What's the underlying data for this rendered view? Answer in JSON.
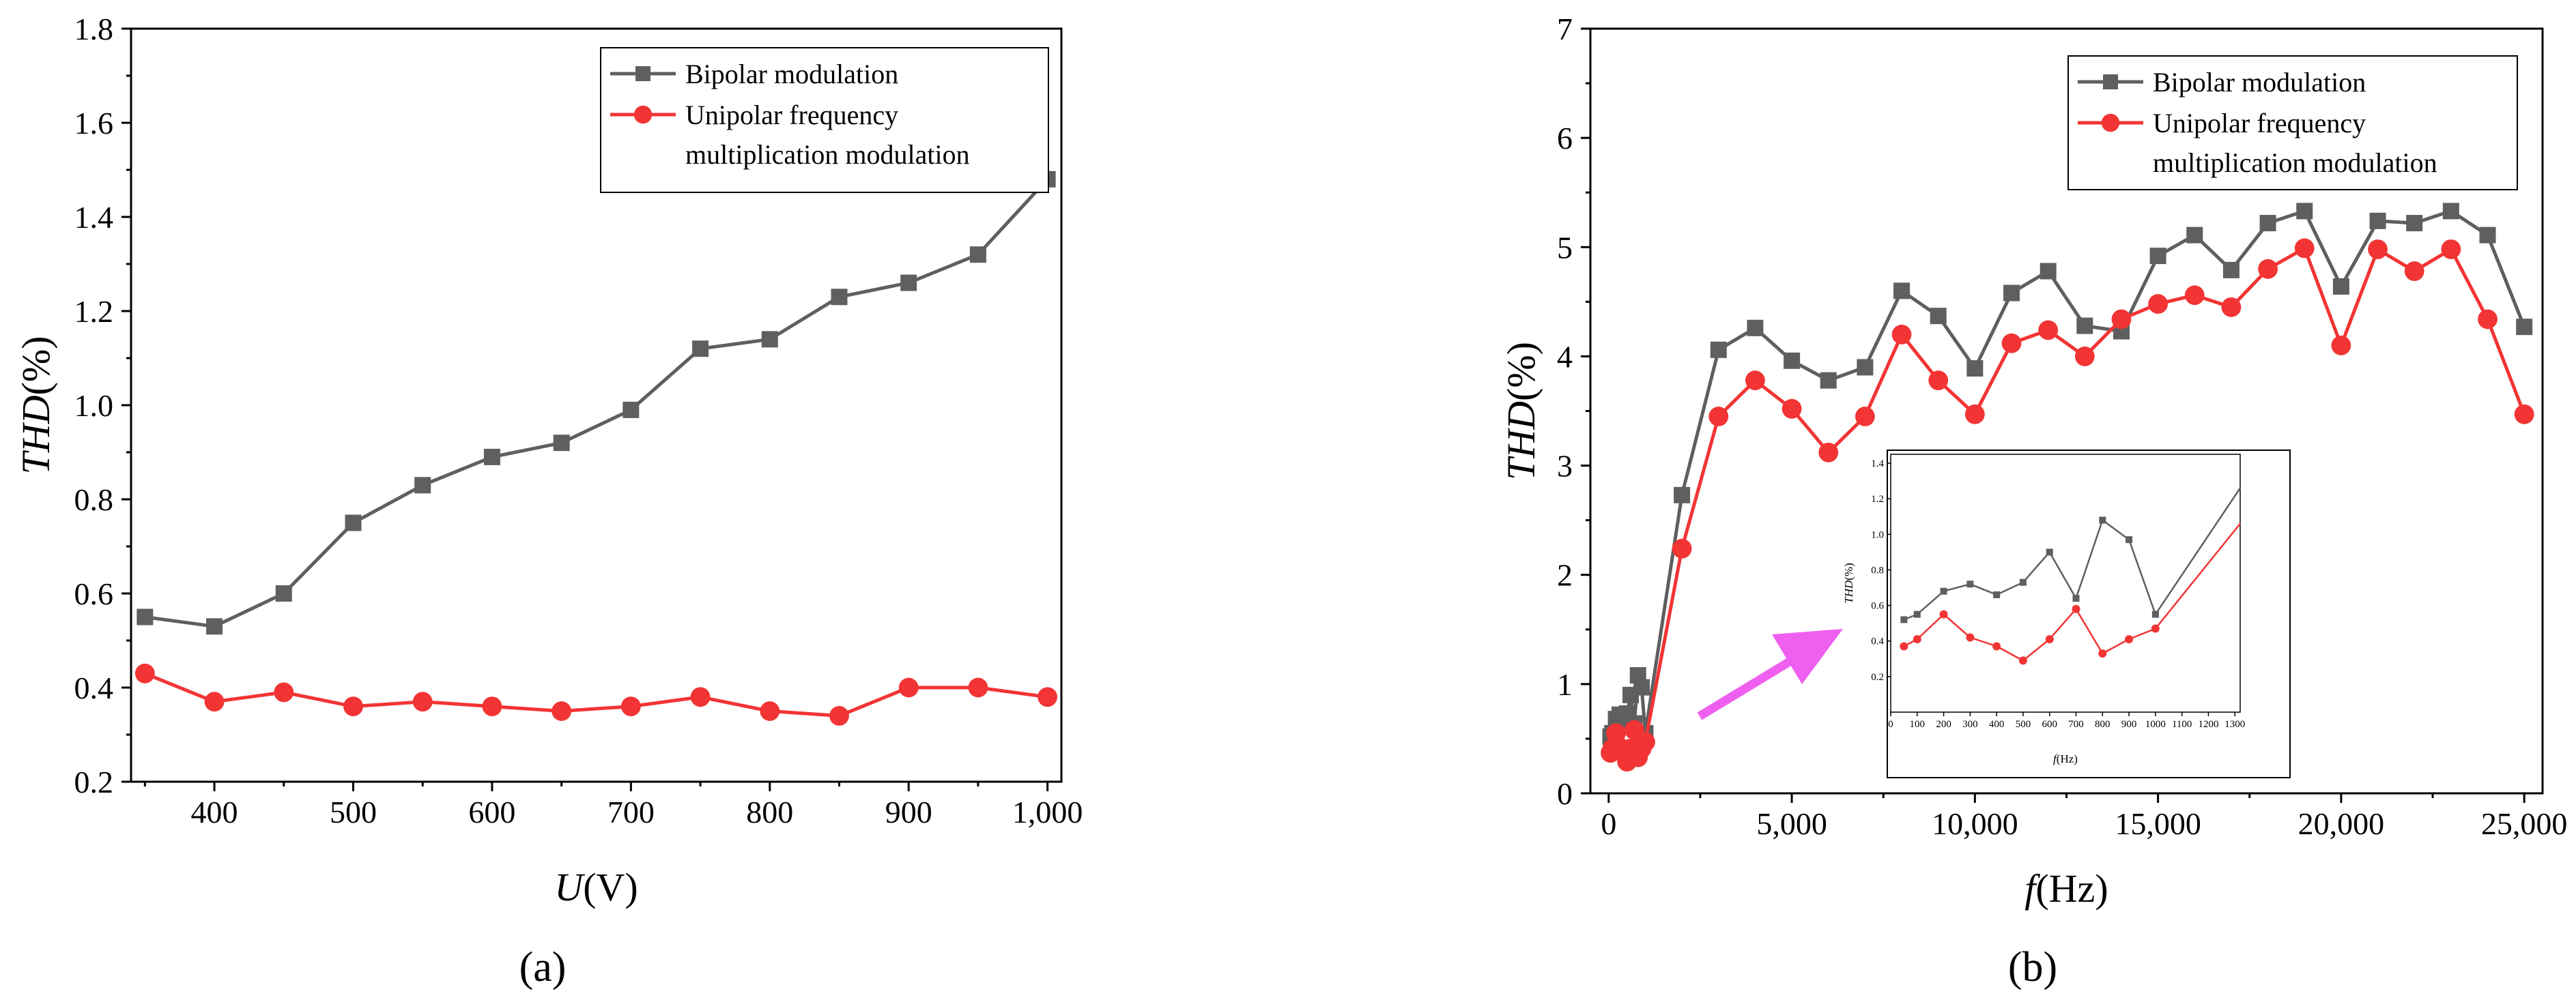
{
  "colors": {
    "bipolar": "#5f5f5f",
    "unipolar": "#f23434",
    "arrow": "#ef5ff0",
    "axis": "#000000"
  },
  "chart_data": [
    {
      "type": "line",
      "caption": "(a)",
      "xlabel_italic": "U",
      "xlabel_unit": "(V)",
      "ylabel_italic": "THD",
      "ylabel_unit": "(%)",
      "xlim": [
        340,
        1010
      ],
      "ylim": [
        0.2,
        1.8
      ],
      "xticks": [
        400,
        500,
        600,
        700,
        800,
        900,
        1000
      ],
      "xtick_labels": [
        "400",
        "500",
        "600",
        "700",
        "800",
        "900",
        "1,000"
      ],
      "yticks": [
        0.2,
        0.4,
        0.6,
        0.8,
        1.0,
        1.2,
        1.4,
        1.6,
        1.8
      ],
      "ytick_labels": [
        "0.2",
        "0.4",
        "0.6",
        "0.8",
        "1.0",
        "1.2",
        "1.4",
        "1.6",
        "1.8"
      ],
      "legend": {
        "position": "top-right",
        "entries": [
          "Bipolar modulation",
          "Unipolar frequency",
          "multiplication modulation"
        ]
      },
      "x": [
        350,
        400,
        450,
        500,
        550,
        600,
        650,
        700,
        750,
        800,
        850,
        900,
        950,
        1000
      ],
      "series": [
        {
          "name": "Bipolar modulation",
          "marker": "square",
          "values": [
            0.55,
            0.53,
            0.6,
            0.75,
            0.83,
            0.89,
            0.92,
            0.99,
            1.12,
            1.14,
            1.23,
            1.26,
            1.32,
            1.48
          ]
        },
        {
          "name": "Unipolar frequency multiplication modulation",
          "marker": "circle",
          "values": [
            0.43,
            0.37,
            0.39,
            0.36,
            0.37,
            0.36,
            0.35,
            0.36,
            0.38,
            0.35,
            0.34,
            0.4,
            0.4,
            0.38
          ]
        }
      ]
    },
    {
      "type": "line",
      "caption": "(b)",
      "xlabel_italic": "f",
      "xlabel_unit": "(Hz)",
      "ylabel_italic": "THD",
      "ylabel_unit": "(%)",
      "xlim": [
        -500,
        25500
      ],
      "ylim": [
        0,
        7
      ],
      "xticks": [
        0,
        5000,
        10000,
        15000,
        20000,
        25000
      ],
      "xtick_labels": [
        "0",
        "5,000",
        "10,000",
        "15,000",
        "20,000",
        "25,000"
      ],
      "yticks": [
        0,
        1,
        2,
        3,
        4,
        5,
        6,
        7
      ],
      "ytick_labels": [
        "0",
        "1",
        "2",
        "3",
        "4",
        "5",
        "6",
        "7"
      ],
      "legend": {
        "position": "top-right",
        "entries": [
          "Bipolar modulation",
          "Unipolar frequency",
          "multiplication modulation"
        ]
      },
      "x": [
        50,
        100,
        200,
        300,
        400,
        500,
        600,
        700,
        800,
        900,
        1000,
        2000,
        3000,
        4000,
        5000,
        6000,
        7000,
        8000,
        9000,
        10000,
        11000,
        12000,
        13000,
        14000,
        15000,
        16000,
        17000,
        18000,
        19000,
        20000,
        21000,
        22000,
        23000,
        24000,
        25000
      ],
      "series": [
        {
          "name": "Bipolar modulation",
          "marker": "square",
          "values": [
            0.52,
            0.55,
            0.68,
            0.72,
            0.66,
            0.73,
            0.9,
            0.64,
            1.08,
            0.97,
            0.55,
            2.73,
            4.06,
            4.26,
            3.96,
            3.78,
            3.9,
            4.6,
            4.37,
            3.89,
            4.58,
            4.78,
            4.28,
            4.23,
            4.92,
            5.11,
            4.79,
            5.22,
            5.33,
            4.64,
            5.24,
            5.22,
            5.33,
            5.11,
            4.27
          ]
        },
        {
          "name": "Unipolar frequency multiplication modulation",
          "marker": "circle",
          "values": [
            0.37,
            0.41,
            0.55,
            0.42,
            0.37,
            0.29,
            0.41,
            0.58,
            0.33,
            0.41,
            0.47,
            2.24,
            3.45,
            3.78,
            3.52,
            3.12,
            3.45,
            4.2,
            3.78,
            3.47,
            4.12,
            4.24,
            4.0,
            4.34,
            4.48,
            4.56,
            4.45,
            4.8,
            4.99,
            4.1,
            4.98,
            4.78,
            4.98,
            4.34,
            3.47
          ]
        }
      ],
      "inset": {
        "type": "line",
        "xlabel_italic": "f",
        "xlabel_unit": "(Hz)",
        "ylabel_italic": "THD",
        "ylabel_unit": "(%)",
        "xlim": [
          0,
          1320
        ],
        "ylim": [
          0,
          1.45
        ],
        "xticks": [
          0,
          100,
          200,
          300,
          400,
          500,
          600,
          700,
          800,
          900,
          1000,
          1100,
          1200,
          1300
        ],
        "xtick_labels": [
          "0",
          "100",
          "200",
          "300",
          "400",
          "500",
          "600",
          "700",
          "800",
          "900",
          "1000",
          "1100",
          "1200",
          "1300"
        ],
        "yticks": [
          0.2,
          0.4,
          0.6,
          0.8,
          1.0,
          1.2,
          1.4
        ],
        "ytick_labels": [
          "0.2",
          "0.4",
          "0.6",
          "0.8",
          "1.0",
          "1.2",
          "1.4"
        ],
        "x": [
          50,
          100,
          200,
          300,
          400,
          500,
          600,
          700,
          800,
          900,
          1000,
          1320
        ],
        "series": [
          {
            "name": "Bipolar modulation",
            "marker": "square",
            "values": [
              0.52,
              0.55,
              0.68,
              0.72,
              0.66,
              0.73,
              0.9,
              0.64,
              1.08,
              0.97,
              0.55,
              1.26
            ]
          },
          {
            "name": "Unipolar frequency multiplication modulation",
            "marker": "circle",
            "values": [
              0.37,
              0.41,
              0.55,
              0.42,
              0.37,
              0.29,
              0.41,
              0.58,
              0.33,
              0.41,
              0.47,
              1.06
            ]
          }
        ]
      }
    }
  ]
}
